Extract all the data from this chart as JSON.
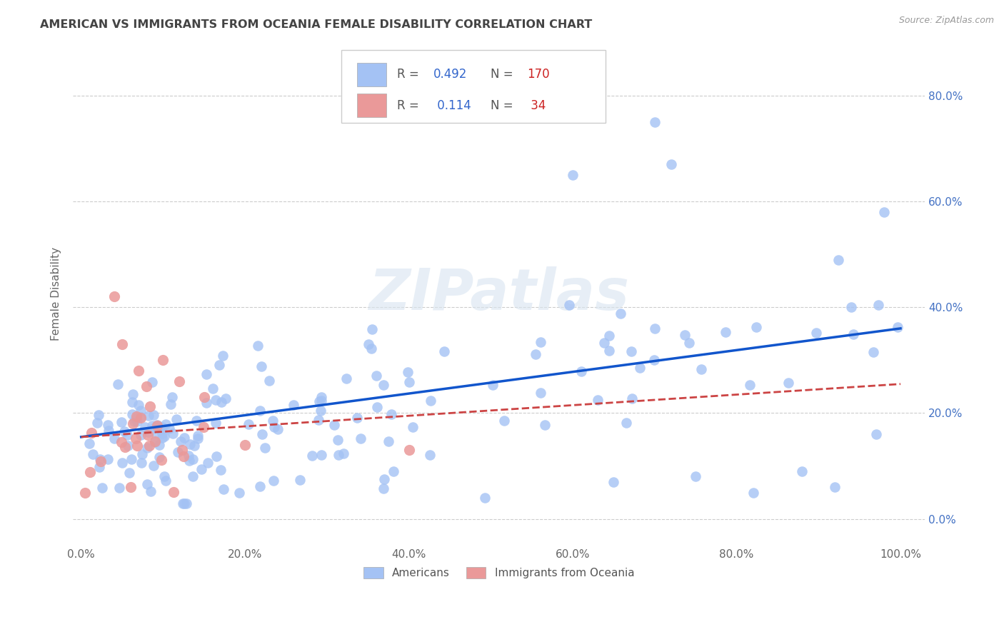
{
  "title": "AMERICAN VS IMMIGRANTS FROM OCEANIA FEMALE DISABILITY CORRELATION CHART",
  "source": "Source: ZipAtlas.com",
  "ylabel": "Female Disability",
  "blue_color": "#a4c2f4",
  "pink_color": "#ea9999",
  "blue_line_color": "#1155cc",
  "pink_line_color": "#cc4444",
  "watermark_text": "ZIPatlas",
  "legend_label1": "Americans",
  "legend_label2": "Immigrants from Oceania",
  "R1": "0.492",
  "N1": "170",
  "R2": "0.114",
  "N2": "34",
  "ytick_color": "#4472c4",
  "label_color": "#666666",
  "title_color": "#444444",
  "source_color": "#999999"
}
